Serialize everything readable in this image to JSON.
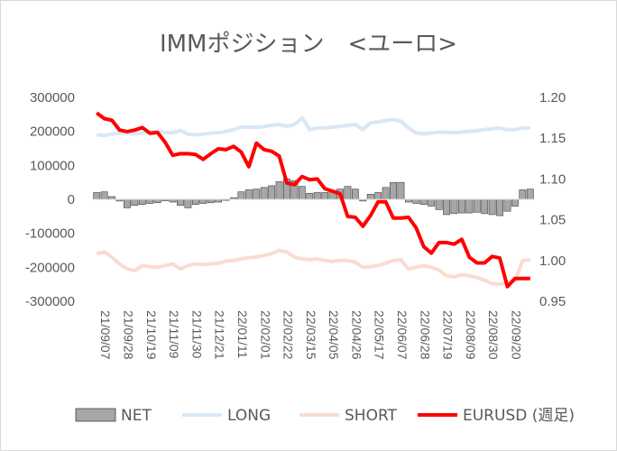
{
  "chart_data": {
    "type": "bar+line",
    "title": "IMMポジション　<ユーロ>",
    "y_left": {
      "min": -300000,
      "max": 300000,
      "ticks": [
        "300000",
        "200000",
        "100000",
        "0",
        "-100000",
        "-200000",
        "-300000"
      ]
    },
    "y_right": {
      "min": 0.95,
      "max": 1.2,
      "ticks": [
        "1.20",
        "1.15",
        "1.10",
        "1.05",
        "1.00",
        "0.95"
      ]
    },
    "x_tick_labels": [
      "21/09/07",
      "21/09/28",
      "21/10/19",
      "21/11/09",
      "21/11/30",
      "21/12/21",
      "22/01/11",
      "22/02/01",
      "22/02/22",
      "22/03/15",
      "22/04/05",
      "22/04/26",
      "22/05/17",
      "22/06/07",
      "22/06/28",
      "22/07/19",
      "22/08/09",
      "22/08/30",
      "22/09/20"
    ],
    "colors": {
      "net": "#a6a6a6",
      "long": "#dae7f4",
      "short": "#f9dcd0",
      "eurusd": "#ff0000"
    },
    "series": [
      {
        "name": "NET",
        "type": "bar",
        "axis": "left",
        "values": [
          20000,
          22000,
          8000,
          -5000,
          -25000,
          -18000,
          -15000,
          -12000,
          -10000,
          -4000,
          -8000,
          -18000,
          -25000,
          -15000,
          -12000,
          -10000,
          -8000,
          -3000,
          5000,
          22000,
          28000,
          30000,
          35000,
          40000,
          52000,
          60000,
          55000,
          38000,
          18000,
          20000,
          20000,
          25000,
          30000,
          38000,
          30000,
          -5000,
          15000,
          20000,
          35000,
          50000,
          50000,
          -8000,
          -12000,
          -15000,
          -20000,
          -30000,
          -45000,
          -42000,
          -40000,
          -40000,
          -38000,
          -42000,
          -45000,
          -48000,
          -35000,
          -20000,
          28000,
          30000
        ]
      },
      {
        "name": "LONG",
        "type": "line",
        "axis": "left",
        "values": [
          190000,
          188000,
          192000,
          195000,
          194000,
          193000,
          195000,
          198000,
          200000,
          197000,
          196000,
          203000,
          192000,
          190000,
          192000,
          195000,
          196000,
          200000,
          205000,
          213000,
          212000,
          212000,
          214000,
          218000,
          220000,
          215000,
          220000,
          240000,
          205000,
          210000,
          210000,
          212000,
          215000,
          218000,
          220000,
          205000,
          225000,
          228000,
          232000,
          235000,
          230000,
          210000,
          195000,
          193000,
          195000,
          198000,
          197000,
          196000,
          198000,
          200000,
          202000,
          205000,
          208000,
          210000,
          205000,
          205000,
          210000,
          210000
        ]
      },
      {
        "name": "SHORT",
        "type": "line",
        "axis": "left",
        "values": [
          -160000,
          -155000,
          -170000,
          -190000,
          -205000,
          -210000,
          -195000,
          -198000,
          -200000,
          -195000,
          -190000,
          -205000,
          -195000,
          -190000,
          -192000,
          -190000,
          -188000,
          -182000,
          -180000,
          -175000,
          -172000,
          -170000,
          -165000,
          -160000,
          -150000,
          -155000,
          -170000,
          -175000,
          -178000,
          -175000,
          -180000,
          -183000,
          -180000,
          -180000,
          -185000,
          -200000,
          -198000,
          -195000,
          -188000,
          -180000,
          -178000,
          -205000,
          -200000,
          -195000,
          -200000,
          -208000,
          -225000,
          -228000,
          -222000,
          -225000,
          -230000,
          -238000,
          -248000,
          -250000,
          -245000,
          -240000,
          -180000,
          -178000
        ]
      },
      {
        "name": "EURUSD (週足)",
        "type": "line",
        "axis": "right",
        "values": [
          1.181,
          1.174,
          1.172,
          1.16,
          1.158,
          1.16,
          1.163,
          1.156,
          1.157,
          1.145,
          1.129,
          1.131,
          1.131,
          1.13,
          1.124,
          1.131,
          1.137,
          1.136,
          1.14,
          1.133,
          1.115,
          1.144,
          1.136,
          1.134,
          1.128,
          1.095,
          1.093,
          1.103,
          1.099,
          1.1,
          1.088,
          1.085,
          1.082,
          1.054,
          1.053,
          1.042,
          1.055,
          1.072,
          1.072,
          1.052,
          1.052,
          1.053,
          1.04,
          1.017,
          1.009,
          1.022,
          1.022,
          1.02,
          1.026,
          1.004,
          0.997,
          0.997,
          1.005,
          1.003,
          0.968,
          0.978,
          0.978,
          0.978
        ]
      }
    ],
    "legend": {
      "position": "bottom",
      "entries": [
        "NET",
        "LONG",
        "SHORT",
        "EURUSD (週足)"
      ]
    },
    "grid": false
  }
}
